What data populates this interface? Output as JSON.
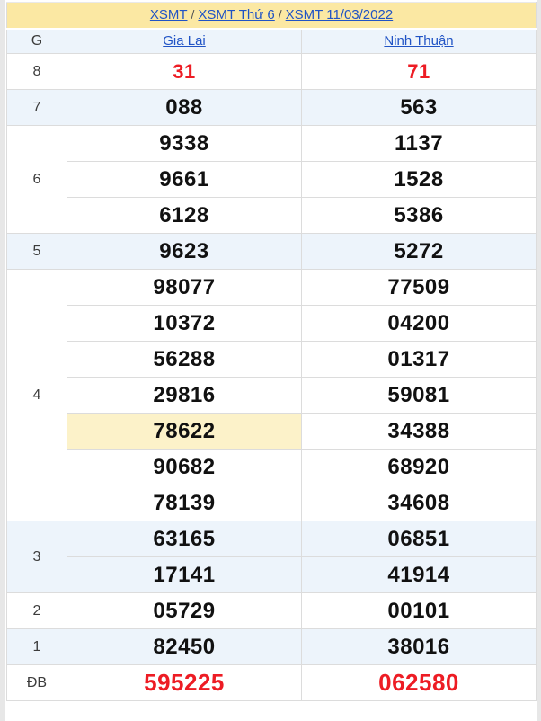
{
  "breadcrumb": {
    "links": [
      "XSMT",
      "XSMT Thứ 6",
      "XSMT 11/03/2022"
    ],
    "separator": "/"
  },
  "table": {
    "corner_label": "G",
    "columns": [
      "Gia Lai",
      "Ninh Thuận"
    ],
    "groups": [
      {
        "label": "8",
        "style": "red",
        "gia_lai": [
          "31"
        ],
        "ninh_thuan": [
          "71"
        ]
      },
      {
        "label": "7",
        "style": "black",
        "gia_lai": [
          "088"
        ],
        "ninh_thuan": [
          "563"
        ]
      },
      {
        "label": "6",
        "style": "black",
        "gia_lai": [
          "9338",
          "9661",
          "6128"
        ],
        "ninh_thuan": [
          "1137",
          "1528",
          "5386"
        ]
      },
      {
        "label": "5",
        "style": "black",
        "gia_lai": [
          "9623"
        ],
        "ninh_thuan": [
          "5272"
        ]
      },
      {
        "label": "4",
        "style": "black",
        "gia_lai": [
          "98077",
          "10372",
          "56288",
          "29816",
          "78622",
          "90682",
          "78139"
        ],
        "ninh_thuan": [
          "77509",
          "04200",
          "01317",
          "59081",
          "34388",
          "68920",
          "34608"
        ],
        "highlight": {
          "column": "gia_lai",
          "index": 4,
          "value": "78622"
        }
      },
      {
        "label": "3",
        "style": "black",
        "gia_lai": [
          "63165",
          "17141"
        ],
        "ninh_thuan": [
          "06851",
          "41914"
        ]
      },
      {
        "label": "2",
        "style": "black",
        "gia_lai": [
          "05729"
        ],
        "ninh_thuan": [
          "00101"
        ]
      },
      {
        "label": "1",
        "style": "black",
        "gia_lai": [
          "82450"
        ],
        "ninh_thuan": [
          "38016"
        ]
      },
      {
        "label": "ĐB",
        "style": "red",
        "gia_lai": [
          "595225"
        ],
        "ninh_thuan": [
          "062580"
        ]
      }
    ]
  },
  "colors": {
    "title_bar_bg": "#fbe8a3",
    "alt_row_bg": "#edf4fb",
    "highlight_bg": "#fcf2c9",
    "red_value": "#ed1c24",
    "link_blue": "#2053c5",
    "border": "#dcdcdc",
    "page_edge": "#e7e7e7"
  }
}
